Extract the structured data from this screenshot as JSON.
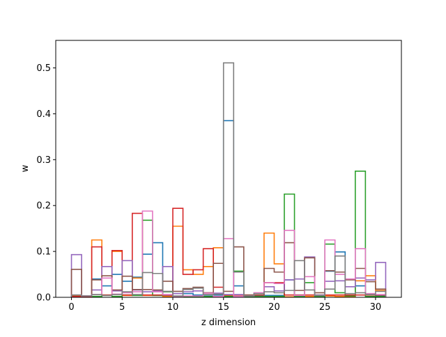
{
  "chart_data": {
    "type": "histogram-step",
    "title": "",
    "xlabel": "z dimension",
    "ylabel": "w",
    "xlim": [
      -1.55,
      32.55
    ],
    "ylim": [
      0,
      0.56
    ],
    "xticks": [
      0,
      5,
      10,
      15,
      20,
      25,
      30
    ],
    "yticks": [
      0.0,
      0.1,
      0.2,
      0.3,
      0.4,
      0.5
    ],
    "grid": false,
    "legend": "none",
    "bin_edges": [
      0,
      1,
      2,
      3,
      4,
      5,
      6,
      7,
      8,
      9,
      10,
      11,
      12,
      13,
      14,
      15,
      16,
      17,
      18,
      19,
      20,
      21,
      22,
      23,
      24,
      25,
      26,
      27,
      28,
      29,
      30,
      31
    ],
    "series": [
      {
        "color": "#1f77b4",
        "values": [
          0.003,
          0.003,
          0.04,
          0.025,
          0.05,
          0.035,
          0.044,
          0.094,
          0.119,
          0.004,
          0.008,
          0.008,
          0.005,
          0.003,
          0.005,
          0.385,
          0.025,
          0.003,
          0.003,
          0.004,
          0.004,
          0.038,
          0.005,
          0.001,
          0.002,
          0.057,
          0.099,
          0.002,
          0.025,
          0.006,
          0.004
        ]
      },
      {
        "color": "#ff7f0e",
        "values": [
          0.003,
          0.003,
          0.125,
          0.005,
          0.1,
          0.004,
          0.042,
          0.004,
          0.004,
          0.002,
          0.155,
          0.06,
          0.05,
          0.067,
          0.108,
          0.003,
          0.002,
          0.003,
          0.003,
          0.14,
          0.073,
          0.001,
          0.002,
          0.002,
          0.002,
          0.003,
          0.002,
          0.002,
          0.036,
          0.047,
          0.015
        ]
      },
      {
        "color": "#2ca02c",
        "values": [
          0.002,
          0.002,
          0.002,
          0.004,
          0.002,
          0.005,
          0.004,
          0.168,
          0.004,
          0.012,
          0.001,
          0.001,
          0.001,
          0.002,
          0.002,
          0.002,
          0.057,
          0.002,
          0.002,
          0.002,
          0.002,
          0.225,
          0.002,
          0.032,
          0.002,
          0.116,
          0.01,
          0.003,
          0.275,
          0.002,
          0.002
        ]
      },
      {
        "color": "#d62728",
        "values": [
          0.002,
          0.002,
          0.11,
          0.005,
          0.102,
          0.005,
          0.183,
          0.005,
          0.005,
          0.005,
          0.194,
          0.05,
          0.06,
          0.106,
          0.022,
          0.005,
          0.005,
          0.005,
          0.005,
          0.032,
          0.032,
          0.005,
          0.005,
          0.005,
          0.005,
          0.005,
          0.005,
          0.005,
          0.005,
          0.005,
          0.005
        ]
      },
      {
        "color": "#9467bd",
        "values": [
          0.093,
          0.003,
          0.016,
          0.067,
          0.014,
          0.08,
          0.016,
          0.012,
          0.014,
          0.067,
          0.008,
          0.012,
          0.014,
          0.006,
          0.009,
          0.006,
          0.006,
          0.003,
          0.004,
          0.023,
          0.014,
          0.038,
          0.04,
          0.088,
          0.005,
          0.035,
          0.036,
          0.023,
          0.042,
          0.038,
          0.076
        ]
      },
      {
        "color": "#8c564b",
        "values": [
          0.061,
          0.003,
          0.038,
          0.047,
          0.016,
          0.046,
          0.017,
          0.017,
          0.016,
          0.035,
          0.013,
          0.019,
          0.022,
          0.01,
          0.074,
          0.013,
          0.11,
          0.005,
          0.004,
          0.063,
          0.055,
          0.119,
          0.015,
          0.086,
          0.01,
          0.058,
          0.055,
          0.038,
          0.063,
          0.034,
          0.018
        ]
      },
      {
        "color": "#e377c2",
        "values": [
          0.005,
          0.003,
          0.006,
          0.042,
          0.007,
          0.01,
          0.012,
          0.188,
          0.012,
          0.006,
          0.002,
          0.003,
          0.003,
          0.009,
          0.002,
          0.128,
          0.002,
          0.003,
          0.01,
          0.032,
          0.03,
          0.146,
          0.004,
          0.045,
          0.004,
          0.125,
          0.05,
          0.04,
          0.106,
          0.008,
          0.006
        ]
      },
      {
        "color": "#7f7f7f",
        "values": [
          0.005,
          0.003,
          0.006,
          0.004,
          0.006,
          0.012,
          0.006,
          0.054,
          0.052,
          0.013,
          0.003,
          0.017,
          0.02,
          0.006,
          0.007,
          0.511,
          0.055,
          0.003,
          0.008,
          0.012,
          0.01,
          0.015,
          0.08,
          0.016,
          0.004,
          0.018,
          0.09,
          0.008,
          0.01,
          0.006,
          0.013
        ]
      }
    ]
  }
}
